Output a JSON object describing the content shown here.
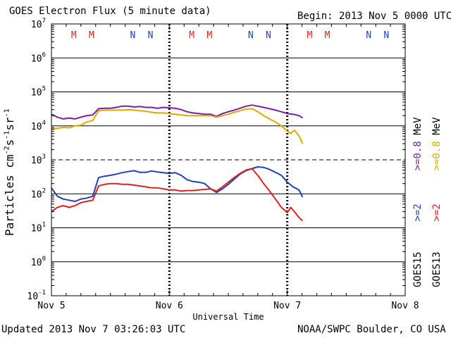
{
  "header": {
    "title": "GOES Electron Flux (5 minute data)",
    "begin": "Begin: 2013 Nov 5 0000 UTC"
  },
  "footer": {
    "updated": "Updated 2013 Nov  7 03:26:03 UTC",
    "credit": "NOAA/SWPC Boulder, CO USA"
  },
  "legend": {
    "goes15_label": "GOES15",
    "goes13_label": "GOES13",
    "g15_low": ">=2",
    "g13_low": ">=2",
    "g15_high": ">=0.8",
    "g13_high": ">=0.8",
    "unit": "MeV"
  },
  "colors": {
    "g15_2mev": "#1f3fbf",
    "g13_2mev": "#e02020",
    "g15_08mev": "#7a1fa2",
    "g13_08mev": "#e0a800",
    "marker_m": "#e02020",
    "marker_n": "#1f3fbf"
  },
  "chart_data": {
    "type": "line",
    "title": "GOES Electron Flux (5 minute data)",
    "xlabel": "Universal Time",
    "ylabel": "Particles cm-2s-1sr-1",
    "x_units": "days since 2013 Nov 5 0000 UTC",
    "xlim": [
      0,
      3
    ],
    "y_scale": "log10",
    "ylim_exp": [
      -1,
      7
    ],
    "x_ticks": [
      {
        "x": 0,
        "label": "Nov 5"
      },
      {
        "x": 1,
        "label": "Nov 6"
      },
      {
        "x": 2,
        "label": "Nov 7"
      },
      {
        "x": 3,
        "label": "Nov 8"
      }
    ],
    "y_ticks": [
      {
        "exp": 7,
        "label": "10",
        "sup": "7"
      },
      {
        "exp": 6,
        "label": "10",
        "sup": "6"
      },
      {
        "exp": 5,
        "label": "10",
        "sup": "5"
      },
      {
        "exp": 4,
        "label": "10",
        "sup": "4"
      },
      {
        "exp": 3,
        "label": "10",
        "sup": "3"
      },
      {
        "exp": 2,
        "label": "10",
        "sup": "2"
      },
      {
        "exp": 1,
        "label": "10",
        "sup": "1"
      },
      {
        "exp": 0,
        "label": "10",
        "sup": "0"
      },
      {
        "exp": -1,
        "label": "10",
        "sup": "-1"
      }
    ],
    "threshold_exp": 3,
    "markers": [
      {
        "x": 0.19,
        "label": "M",
        "kind": "m"
      },
      {
        "x": 0.34,
        "label": "M",
        "kind": "m"
      },
      {
        "x": 0.69,
        "label": "N",
        "kind": "n"
      },
      {
        "x": 0.84,
        "label": "N",
        "kind": "n"
      },
      {
        "x": 1.19,
        "label": "M",
        "kind": "m"
      },
      {
        "x": 1.34,
        "label": "M",
        "kind": "m"
      },
      {
        "x": 1.69,
        "label": "N",
        "kind": "n"
      },
      {
        "x": 1.84,
        "label": "N",
        "kind": "n"
      },
      {
        "x": 2.19,
        "label": "M",
        "kind": "m"
      },
      {
        "x": 2.34,
        "label": "M",
        "kind": "m"
      },
      {
        "x": 2.69,
        "label": "N",
        "kind": "n"
      },
      {
        "x": 2.84,
        "label": "N",
        "kind": "n"
      }
    ],
    "series": [
      {
        "name": "GOES15 >=0.8 MeV",
        "color_key": "g15_08mev",
        "x": [
          0.0,
          0.05,
          0.1,
          0.15,
          0.2,
          0.25,
          0.3,
          0.35,
          0.4,
          0.45,
          0.5,
          0.55,
          0.6,
          0.65,
          0.7,
          0.75,
          0.8,
          0.85,
          0.9,
          0.95,
          1.0,
          1.05,
          1.1,
          1.15,
          1.2,
          1.25,
          1.3,
          1.35,
          1.4,
          1.45,
          1.5,
          1.55,
          1.6,
          1.65,
          1.7,
          1.75,
          1.8,
          1.85,
          1.9,
          1.95,
          2.0,
          2.05,
          2.1,
          2.13
        ],
        "y": [
          22000.0,
          18000.0,
          16000.0,
          17000.0,
          16000.0,
          18000.0,
          20000.0,
          21000.0,
          32000.0,
          33000.0,
          33000.0,
          35000.0,
          38000.0,
          38000.0,
          36000.0,
          37000.0,
          35000.0,
          35000.0,
          33000.0,
          35000.0,
          34000.0,
          33000.0,
          30000.0,
          26000.0,
          24000.0,
          23000.0,
          22000.0,
          22000.0,
          19000.0,
          23000.0,
          26000.0,
          29000.0,
          33000.0,
          38000.0,
          41000.0,
          38000.0,
          35000.0,
          32000.0,
          29000.0,
          26000.0,
          23000.0,
          22000.0,
          20000.0,
          17000.0
        ]
      },
      {
        "name": "GOES13 >=0.8 MeV",
        "color_key": "g13_08mev",
        "x": [
          0.0,
          0.05,
          0.1,
          0.15,
          0.2,
          0.25,
          0.3,
          0.35,
          0.4,
          0.45,
          0.5,
          0.55,
          0.6,
          0.65,
          0.7,
          0.75,
          0.8,
          0.85,
          0.9,
          0.95,
          1.0,
          1.05,
          1.1,
          1.15,
          1.2,
          1.25,
          1.3,
          1.35,
          1.4,
          1.45,
          1.5,
          1.55,
          1.6,
          1.65,
          1.7,
          1.75,
          1.8,
          1.85,
          1.9,
          1.95,
          2.0,
          2.03,
          2.06,
          2.1,
          2.13
        ],
        "y": [
          8000.0,
          8500.0,
          9000.0,
          8800.0,
          10000.0,
          10500.0,
          13000.0,
          14500.0,
          28000.0,
          29000.0,
          29000.0,
          29000.0,
          29000.0,
          30000.0,
          29000.0,
          28000.0,
          27000.0,
          25000.0,
          24000.0,
          24000.0,
          23000.0,
          22000.0,
          21000.0,
          20000.0,
          20000.0,
          20000.0,
          20000.0,
          20000.0,
          18000.0,
          20000.0,
          22000.0,
          25000.0,
          28000.0,
          31000.0,
          32000.0,
          26000.0,
          20000.0,
          16000.0,
          13000.0,
          10000.0,
          7000.0,
          6000.0,
          7500.0,
          5000.0,
          3000.0
        ]
      },
      {
        "name": "GOES15 >=2 MeV",
        "color_key": "g15_2mev",
        "x": [
          0.0,
          0.05,
          0.1,
          0.15,
          0.2,
          0.25,
          0.3,
          0.35,
          0.4,
          0.45,
          0.5,
          0.55,
          0.6,
          0.65,
          0.7,
          0.75,
          0.8,
          0.85,
          0.9,
          0.95,
          1.0,
          1.05,
          1.1,
          1.15,
          1.2,
          1.25,
          1.3,
          1.35,
          1.4,
          1.45,
          1.5,
          1.55,
          1.6,
          1.65,
          1.7,
          1.75,
          1.8,
          1.85,
          1.9,
          1.95,
          2.0,
          2.05,
          2.1,
          2.13
        ],
        "y": [
          150,
          85,
          70,
          65,
          60,
          70,
          75,
          85,
          300,
          330,
          350,
          380,
          420,
          450,
          480,
          430,
          430,
          470,
          440,
          420,
          400,
          420,
          350,
          260,
          230,
          220,
          200,
          140,
          110,
          140,
          190,
          270,
          380,
          480,
          550,
          620,
          600,
          520,
          430,
          350,
          220,
          160,
          130,
          80
        ]
      },
      {
        "name": "GOES13 >=2 MeV",
        "color_key": "g13_2mev",
        "x": [
          0.0,
          0.05,
          0.1,
          0.15,
          0.2,
          0.25,
          0.3,
          0.35,
          0.4,
          0.45,
          0.5,
          0.55,
          0.6,
          0.65,
          0.7,
          0.75,
          0.8,
          0.85,
          0.9,
          0.95,
          1.0,
          1.05,
          1.1,
          1.15,
          1.2,
          1.25,
          1.3,
          1.35,
          1.4,
          1.45,
          1.5,
          1.55,
          1.6,
          1.65,
          1.7,
          1.75,
          1.8,
          1.85,
          1.9,
          1.95,
          2.0,
          2.03,
          2.06,
          2.1,
          2.13
        ],
        "y": [
          30,
          40,
          45,
          40,
          45,
          55,
          60,
          65,
          170,
          190,
          200,
          200,
          190,
          190,
          180,
          170,
          160,
          150,
          150,
          140,
          130,
          130,
          120,
          125,
          125,
          130,
          135,
          140,
          120,
          160,
          220,
          300,
          400,
          500,
          550,
          350,
          200,
          120,
          70,
          40,
          28,
          40,
          30,
          20,
          16
        ]
      }
    ]
  }
}
